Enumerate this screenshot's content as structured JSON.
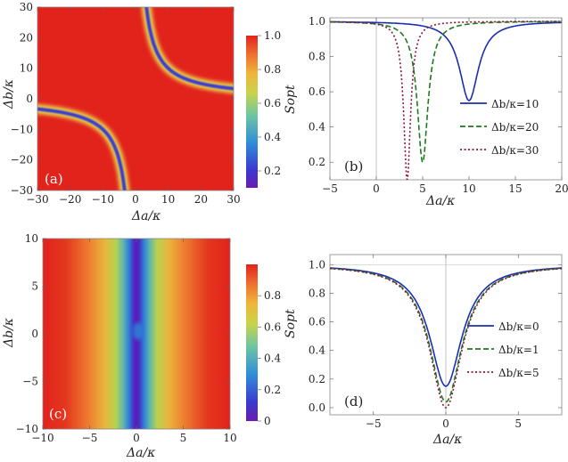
{
  "chart_data": [
    {
      "panel": "a",
      "type": "heatmap",
      "panel_label": "(a)",
      "xlabel": "Δa/κ",
      "ylabel": "Δb/κ",
      "xlim": [
        -30,
        30
      ],
      "ylim": [
        -30,
        30
      ],
      "xticks": [
        "−30",
        "−20",
        "−10",
        "0",
        "10",
        "20",
        "30"
      ],
      "yticks": [
        "−30",
        "−20",
        "−10",
        "0",
        "10",
        "20",
        "30"
      ],
      "colorbar": {
        "min": 0.1,
        "max": 1.0,
        "ticks": [
          "0.2",
          "0.4",
          "0.6",
          "0.8",
          "1.0"
        ]
      },
      "description_values": {
        "high": 1.0,
        "min_along_curves": 0.1
      }
    },
    {
      "panel": "b",
      "type": "line",
      "panel_label": "(b)",
      "xlabel": "Δa/κ",
      "ylabel": "Sopt",
      "xlim": [
        -5,
        20
      ],
      "ylim": [
        0.1,
        1.02
      ],
      "xticks": [
        "−5",
        "0",
        "5",
        "10",
        "15",
        "20"
      ],
      "yticks": [
        "0.2",
        "0.4",
        "0.6",
        "0.8",
        "1.0"
      ],
      "legend_position": "bottom-right",
      "series": [
        {
          "name": "Δb/κ=10",
          "color": "#1a2fb0",
          "dash": "solid",
          "min_x": 10,
          "min_y": 0.55,
          "width": 1.25
        },
        {
          "name": "Δb/κ=20",
          "color": "#1e7a1e",
          "dash": "dashed",
          "min_x": 5,
          "min_y": 0.2,
          "width": 0.7
        },
        {
          "name": "Δb/κ=30",
          "color": "#8b1538",
          "dash": "dotted",
          "min_x": 3.33,
          "min_y": 0.1,
          "width": 0.45
        }
      ]
    },
    {
      "panel": "c",
      "type": "heatmap",
      "panel_label": "(c)",
      "xlabel": "Δa/κ",
      "ylabel": "Δb/κ",
      "xlim": [
        -10,
        10
      ],
      "ylim": [
        -10,
        10
      ],
      "xticks": [
        "−10",
        "−5",
        "0",
        "5",
        "10"
      ],
      "yticks": [
        "−10",
        "−5",
        "0",
        "5",
        "10"
      ],
      "colorbar": {
        "min": 0,
        "max": 1.0,
        "ticks": [
          "0",
          "0.2",
          "0.4",
          "0.6",
          "0.8"
        ]
      }
    },
    {
      "panel": "d",
      "type": "line",
      "panel_label": "(d)",
      "xlabel": "Δa/κ",
      "ylabel": "Sopt",
      "xlim": [
        -8,
        8
      ],
      "ylim": [
        -0.05,
        1.07
      ],
      "xticks": [
        "−5",
        "0",
        "5"
      ],
      "yticks": [
        "0.0",
        "0.2",
        "0.4",
        "0.6",
        "0.8",
        "1.0"
      ],
      "legend_position": "center-right",
      "series": [
        {
          "name": "Δb/κ=0",
          "color": "#1a2fb0",
          "dash": "solid",
          "min_y": 0.15
        },
        {
          "name": "Δb/κ=1",
          "color": "#1e7a1e",
          "dash": "dashed",
          "min_y": 0.04
        },
        {
          "name": "Δb/κ=5",
          "color": "#8b1538",
          "dash": "dotted",
          "min_y": 0.0
        }
      ]
    }
  ]
}
